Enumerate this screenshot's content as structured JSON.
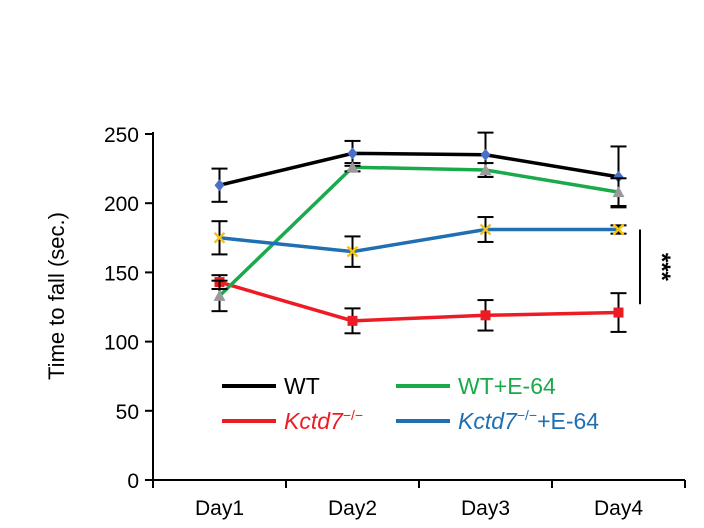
{
  "chart_data": {
    "type": "line",
    "ylabel": "Time to fall (sec.)",
    "xlabel": "",
    "title": "",
    "categories": [
      "Day1",
      "Day2",
      "Day3",
      "Day4"
    ],
    "ylim": [
      0,
      250
    ],
    "yticks": [
      0,
      50,
      100,
      150,
      200,
      250
    ],
    "grid": false,
    "legend_position": "bottom",
    "series": [
      {
        "name": "WT",
        "name_italic": "",
        "name_suffix": "",
        "color": "#000000",
        "text_color": "#000000",
        "marker": "diamond",
        "marker_color": "#4a6fc4",
        "values": [
          213,
          236,
          235,
          219
        ],
        "errors": [
          12,
          9,
          16,
          22
        ]
      },
      {
        "name": "Kctd7−/−",
        "name_italic": "Kctd7",
        "name_suffix": "",
        "name_sup": "−/−",
        "color": "#ed1c24",
        "text_color": "#ed1c24",
        "marker": "square",
        "marker_color": "#ed1c24",
        "values": [
          143,
          115,
          119,
          121
        ],
        "errors": [
          5,
          9,
          11,
          14
        ]
      },
      {
        "name": "WT+E-64",
        "name_italic": "",
        "name_suffix": "",
        "color": "#1aaa4b",
        "text_color": "#1aaa4b",
        "marker": "triangle",
        "marker_color": "#9a9a9a",
        "values": [
          133,
          226,
          224,
          208
        ],
        "errors": [
          11,
          3,
          5,
          10
        ]
      },
      {
        "name": "Kctd7−/−+E-64",
        "name_italic": "Kctd7",
        "name_sup": "−/−",
        "name_suffix": "+E-64",
        "color": "#1f6fb2",
        "text_color": "#1f6fb2",
        "marker": "x",
        "marker_color": "#f3c318",
        "values": [
          175,
          165,
          181,
          181
        ],
        "errors": [
          12,
          11,
          9,
          3
        ]
      }
    ],
    "annotations": [
      {
        "text": "***",
        "between": [
          "Kctd7−/−",
          "Kctd7−/−+E-64"
        ],
        "at": "Day4"
      }
    ]
  }
}
